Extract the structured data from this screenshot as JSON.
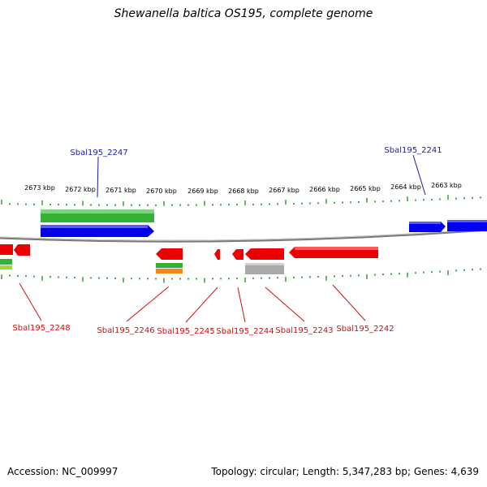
{
  "title": "Shewanella baltica OS195, complete genome",
  "accession": "Accession: NC_009997",
  "summary": "Topology: circular; Length: 5,347,283 bp; Genes: 4,639",
  "kbp_labels": [
    "2673 kbp",
    "2672 kbp",
    "2671 kbp",
    "2670 kbp",
    "2669 kbp",
    "2668 kbp",
    "2667 kbp",
    "2666 kbp",
    "2665 kbp",
    "2664 kbp",
    "2663 kbp"
  ],
  "gene_labels_top": [
    "Sbal195_2247",
    "Sbal195_2241"
  ],
  "gene_labels_bottom": [
    "Sbal195_2248",
    "Sbal195_2246",
    "Sbal195_2245",
    "Sbal195_2244",
    "Sbal195_2243",
    "Sbal195_2242"
  ],
  "colors": {
    "forward_gene": "#0000ee",
    "reverse_gene": "#ee0000",
    "top_label": "#1a1aaa",
    "bottom_label": "#cc1111",
    "tick": "#1e8a1e",
    "green_feature": "#33b333",
    "orange_feature": "#f08a1c",
    "gray_feature": "#a9a9a9",
    "backbone": "#7a7a7a"
  }
}
